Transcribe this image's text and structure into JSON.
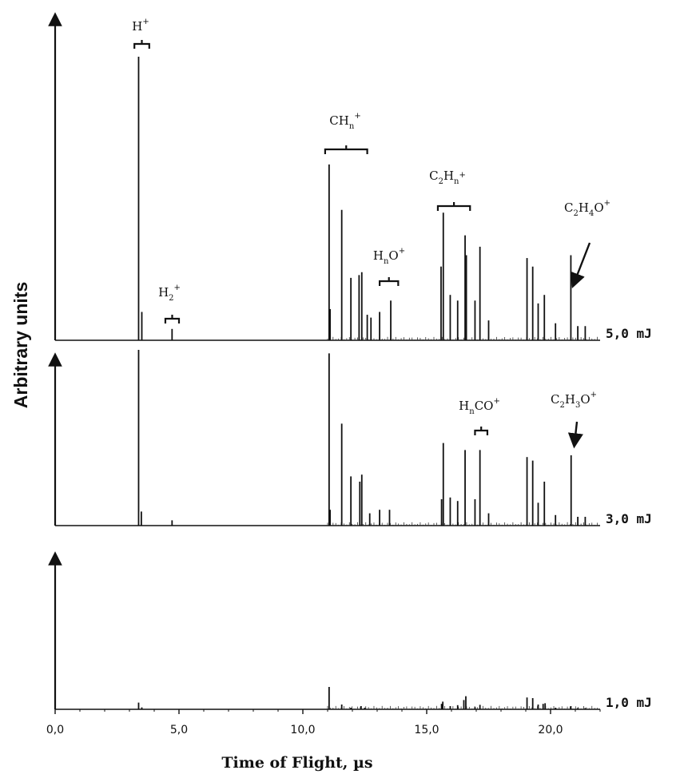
{
  "chart_data": {
    "type": "line",
    "xlabel": "Time of Flight, µs",
    "ylabel": "Arbitrary units",
    "xlim": [
      0,
      22
    ],
    "xticks": [
      0,
      5,
      10,
      15,
      20
    ],
    "xtick_labels": [
      "0,0",
      "5,0",
      "10,0",
      "15,0",
      "20,0"
    ],
    "series": [
      {
        "name": "5,0 mJ",
        "peaks": [
          [
            3.37,
            1.0
          ],
          [
            3.5,
            0.1
          ],
          [
            4.72,
            0.04
          ],
          [
            11.06,
            0.62
          ],
          [
            11.1,
            0.11
          ],
          [
            11.57,
            0.46
          ],
          [
            11.94,
            0.22
          ],
          [
            12.27,
            0.23
          ],
          [
            12.38,
            0.24
          ],
          [
            12.6,
            0.09
          ],
          [
            12.75,
            0.08
          ],
          [
            13.1,
            0.1
          ],
          [
            13.55,
            0.14
          ],
          [
            15.58,
            0.26
          ],
          [
            15.67,
            0.45
          ],
          [
            15.95,
            0.16
          ],
          [
            16.25,
            0.14
          ],
          [
            16.55,
            0.37
          ],
          [
            16.6,
            0.3
          ],
          [
            16.95,
            0.14
          ],
          [
            17.15,
            0.33
          ],
          [
            17.5,
            0.07
          ],
          [
            19.05,
            0.29
          ],
          [
            19.28,
            0.26
          ],
          [
            19.5,
            0.13
          ],
          [
            19.75,
            0.16
          ],
          [
            20.2,
            0.06
          ],
          [
            20.82,
            0.3
          ],
          [
            21.1,
            0.05
          ],
          [
            21.4,
            0.05
          ]
        ]
      },
      {
        "name": "3,0 mJ",
        "peaks": [
          [
            3.37,
            1.0
          ],
          [
            3.48,
            0.08
          ],
          [
            4.72,
            0.03
          ],
          [
            11.06,
            0.98
          ],
          [
            11.1,
            0.09
          ],
          [
            11.57,
            0.58
          ],
          [
            11.94,
            0.28
          ],
          [
            12.3,
            0.25
          ],
          [
            12.38,
            0.29
          ],
          [
            12.7,
            0.07
          ],
          [
            13.1,
            0.09
          ],
          [
            13.5,
            0.09
          ],
          [
            15.6,
            0.15
          ],
          [
            15.67,
            0.47
          ],
          [
            15.95,
            0.16
          ],
          [
            16.25,
            0.14
          ],
          [
            16.55,
            0.43
          ],
          [
            16.95,
            0.15
          ],
          [
            17.15,
            0.43
          ],
          [
            17.5,
            0.07
          ],
          [
            19.05,
            0.39
          ],
          [
            19.28,
            0.37
          ],
          [
            19.5,
            0.13
          ],
          [
            19.75,
            0.25
          ],
          [
            20.2,
            0.06
          ],
          [
            20.83,
            0.4
          ],
          [
            21.1,
            0.05
          ],
          [
            21.4,
            0.05
          ]
        ]
      },
      {
        "name": "1,0 mJ",
        "peaks": [
          [
            3.37,
            0.21
          ],
          [
            3.5,
            0.06
          ],
          [
            11.06,
            0.7
          ],
          [
            11.57,
            0.15
          ],
          [
            11.94,
            0.05
          ],
          [
            12.35,
            0.1
          ],
          [
            12.5,
            0.05
          ],
          [
            15.6,
            0.17
          ],
          [
            15.65,
            0.24
          ],
          [
            15.95,
            0.1
          ],
          [
            16.25,
            0.13
          ],
          [
            16.5,
            0.29
          ],
          [
            16.58,
            0.41
          ],
          [
            16.95,
            0.07
          ],
          [
            17.15,
            0.14
          ],
          [
            19.05,
            0.37
          ],
          [
            19.28,
            0.35
          ],
          [
            19.5,
            0.15
          ],
          [
            19.7,
            0.17
          ],
          [
            19.78,
            0.19
          ],
          [
            20.2,
            0.05
          ],
          [
            20.82,
            0.1
          ],
          [
            21.1,
            0.04
          ],
          [
            21.4,
            0.04
          ]
        ]
      }
    ],
    "annotations": [
      {
        "panel": 0,
        "base": "H",
        "sub": "",
        "tail": "",
        "sup": "+",
        "bracket_x": [
          3.2,
          3.8
        ]
      },
      {
        "panel": 0,
        "base": "H",
        "sub": "2",
        "tail": "",
        "sup": "+",
        "bracket_x": [
          4.45,
          5.0
        ]
      },
      {
        "panel": 0,
        "base": "CH",
        "sub": "n",
        "tail": "",
        "sup": "+",
        "bracket_x": [
          10.9,
          12.6
        ]
      },
      {
        "panel": 0,
        "base": "H",
        "sub": "n",
        "tail": "O",
        "sup": "+",
        "bracket_x": [
          13.1,
          13.85
        ]
      },
      {
        "panel": 0,
        "base": "C",
        "sub": "2",
        "tail": "H",
        "sub2": "n",
        "sup": "+",
        "bracket_x": [
          15.45,
          16.75
        ]
      },
      {
        "panel": 0,
        "base": "C",
        "sub": "2",
        "tail": "H",
        "sub2": "4",
        "tail2": "O",
        "sup": "+",
        "arrow_to": 20.85
      },
      {
        "panel": 1,
        "base": "H",
        "sub": "n",
        "tail": "CO",
        "sup": "+",
        "bracket_x": [
          16.95,
          17.45
        ]
      },
      {
        "panel": 1,
        "base": "C",
        "sub": "2",
        "tail": "H",
        "sub2": "3",
        "tail2": "O",
        "sup": "+",
        "arrow_to": 20.85
      }
    ]
  }
}
